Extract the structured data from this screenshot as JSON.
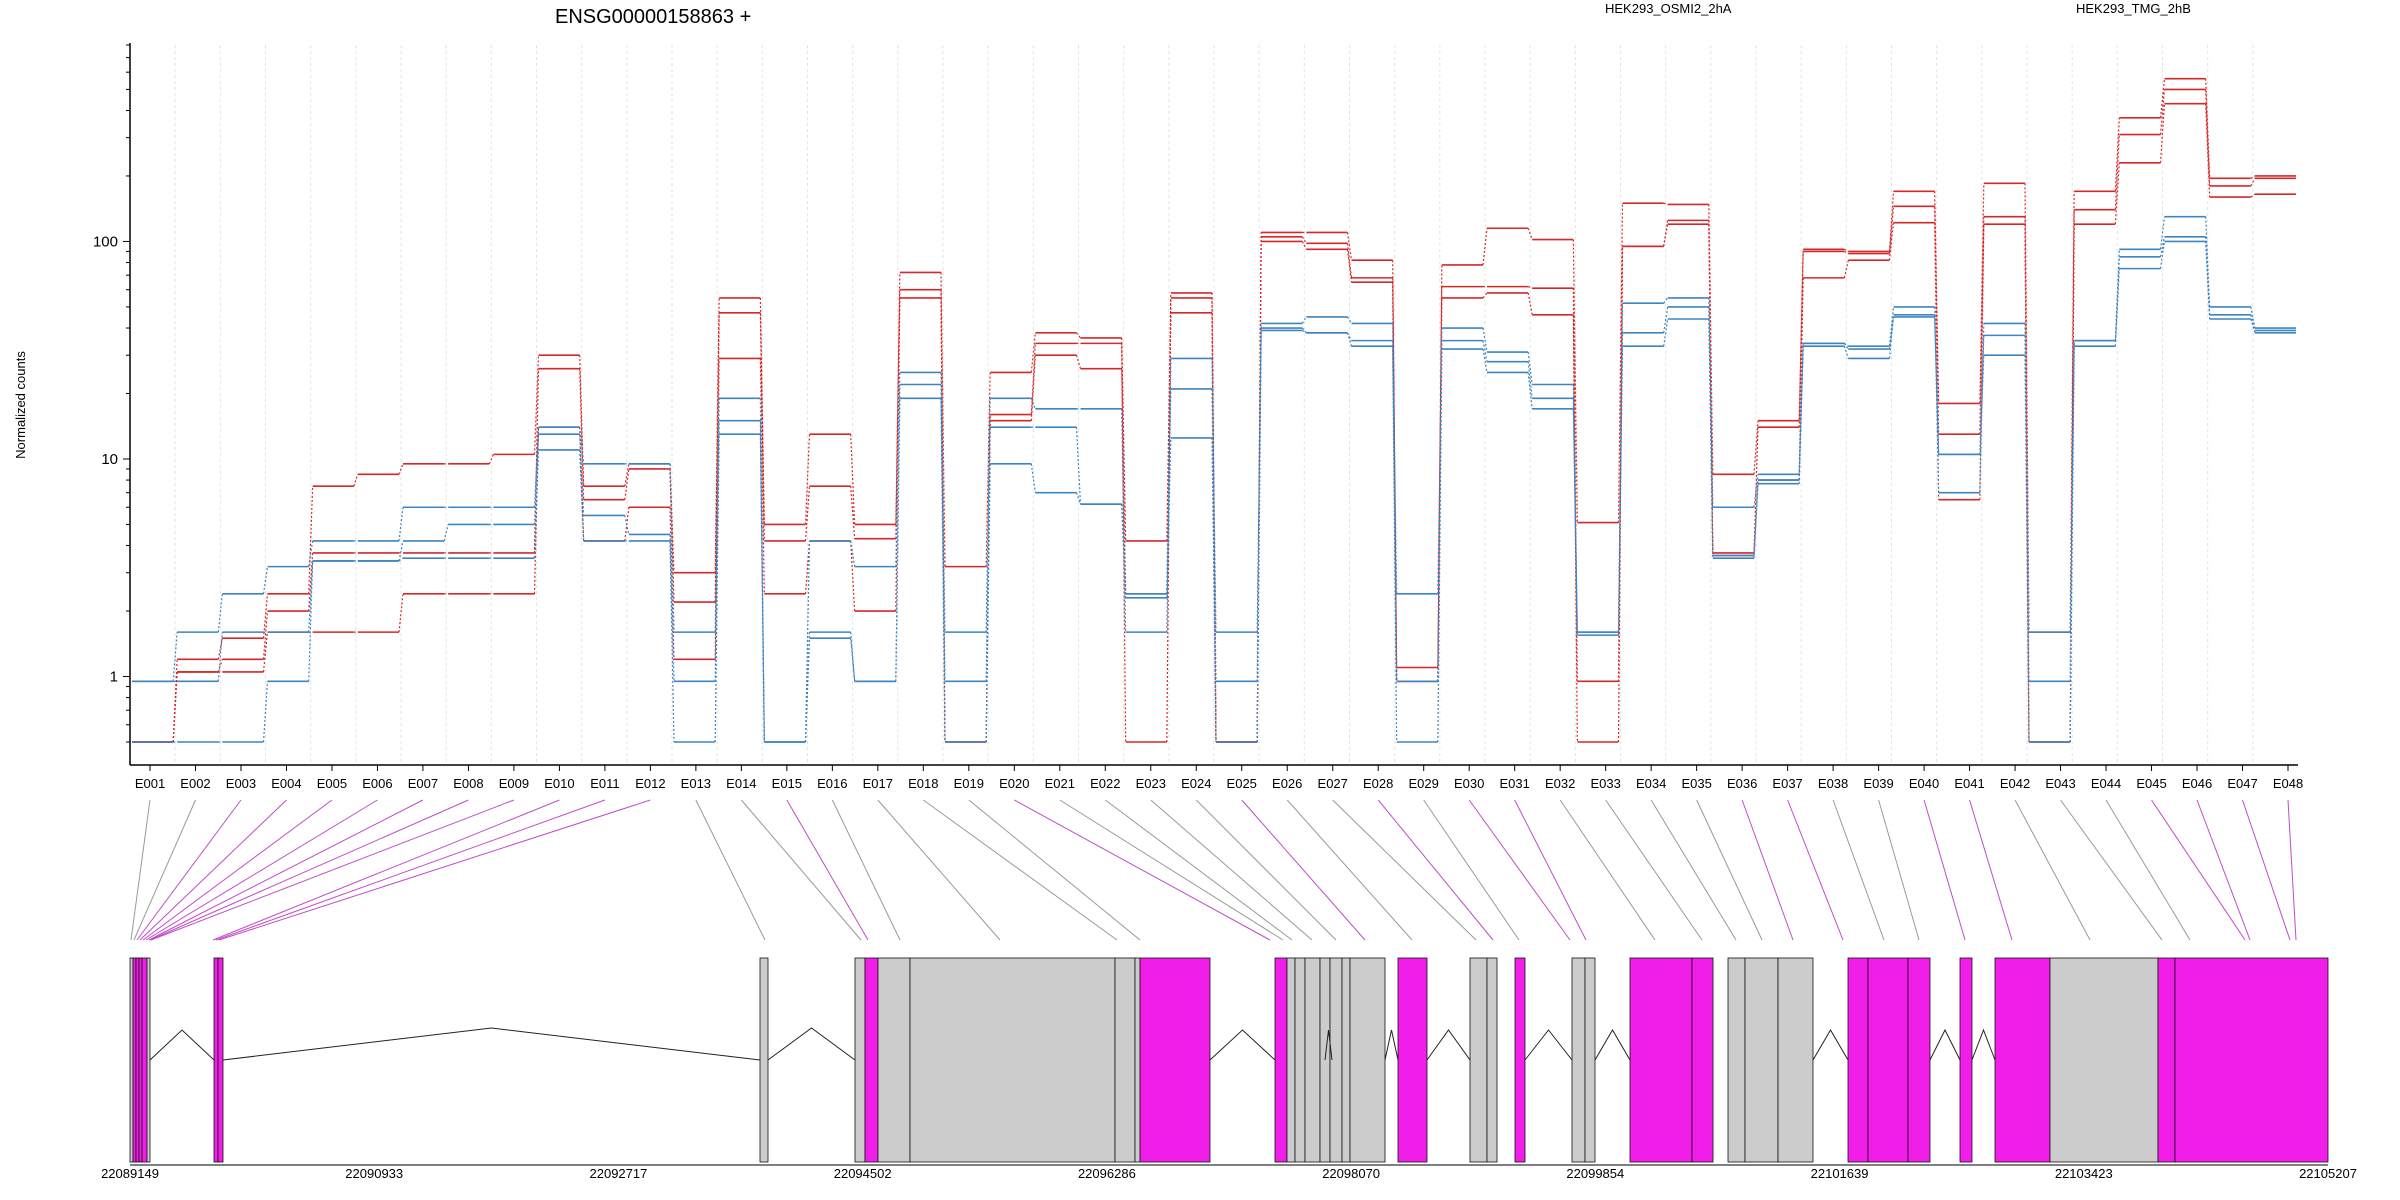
{
  "chart_data": {
    "type": "line",
    "title": "ENSG00000158863 +",
    "ylabel": "Normalized counts",
    "y_scale": "log",
    "ylim": [
      0.5,
      800
    ],
    "y_ticks": [
      1,
      10,
      100
    ],
    "y_tick_labels": [
      "1",
      "10",
      "100"
    ],
    "grid": "vertical dashed grid at exon boundaries",
    "legend": [
      {
        "name": "HEK293_OSMI2_2hA",
        "color": "#d62728",
        "position": "top-center"
      },
      {
        "name": "HEK293_TMG_2hB",
        "color": "#3c85c1",
        "position": "top-right"
      }
    ],
    "categories": [
      "E001",
      "E002",
      "E003",
      "E004",
      "E005",
      "E006",
      "E007",
      "E008",
      "E009",
      "E010",
      "E011",
      "E012",
      "E013",
      "E014",
      "E015",
      "E016",
      "E017",
      "E018",
      "E019",
      "E020",
      "E021",
      "E022",
      "E023",
      "E024",
      "E025",
      "E026",
      "E027",
      "E028",
      "E029",
      "E030",
      "E031",
      "E032",
      "E033",
      "E034",
      "E035",
      "E036",
      "E037",
      "E038",
      "E039",
      "E040",
      "E041",
      "E042",
      "E043",
      "E044",
      "E045",
      "E046",
      "E047",
      "E048"
    ],
    "series": [
      {
        "group": "HEK293_OSMI2_2hA",
        "color": "#d62728",
        "values": [
          0.5,
          1.2,
          1.5,
          2.4,
          7.5,
          8.5,
          9.5,
          9.5,
          10.5,
          30,
          7.5,
          9.5,
          3,
          55,
          5,
          13,
          5,
          72,
          3.2,
          25,
          38,
          36,
          4.2,
          58,
          0.5,
          110,
          110,
          82,
          1.1,
          78,
          115,
          102,
          5.1,
          150,
          148,
          8.5,
          15,
          92,
          90,
          170,
          18,
          185,
          1.6,
          170,
          370,
          560,
          195,
          200
        ]
      },
      {
        "group": "HEK293_OSMI2_2hA",
        "color": "#d62728",
        "values": [
          0.5,
          1.05,
          1.2,
          2,
          3.7,
          3.7,
          3.7,
          3.7,
          3.7,
          26,
          6.5,
          9,
          2.2,
          47,
          4.2,
          7.5,
          4.3,
          60,
          0.5,
          16,
          34,
          34,
          0.5,
          55,
          0.5,
          105,
          98,
          68,
          0.95,
          62,
          62,
          61,
          0.95,
          95,
          125,
          3.7,
          14,
          90,
          88,
          145,
          13,
          130,
          0.5,
          140,
          310,
          500,
          180,
          195
        ]
      },
      {
        "group": "HEK293_OSMI2_2hA",
        "color": "#d62728",
        "values": [
          0.5,
          1.05,
          1.05,
          1.6,
          1.6,
          1.6,
          2.4,
          2.4,
          2.4,
          14,
          4.2,
          6,
          1.2,
          29,
          2.4,
          4.2,
          2,
          55,
          0.5,
          15,
          30,
          26,
          2.4,
          47,
          0.5,
          100,
          92,
          65,
          0.95,
          55,
          58,
          46,
          0.5,
          95,
          120,
          3.6,
          8,
          68,
          82,
          122,
          6.5,
          120,
          0.5,
          120,
          230,
          430,
          160,
          165
        ]
      },
      {
        "group": "HEK293_TMG_2hB",
        "color": "#3c85c1",
        "values": [
          0.95,
          1.6,
          2.4,
          3.2,
          4.2,
          4.2,
          6,
          6,
          6,
          14,
          9.5,
          9.5,
          1.6,
          19,
          0.5,
          4.2,
          3.2,
          25,
          1.6,
          19,
          17,
          17,
          1.6,
          29,
          1.6,
          42,
          45,
          42,
          2.4,
          40,
          31,
          22,
          1.6,
          52,
          55,
          6,
          8.5,
          34,
          33,
          50,
          7,
          42,
          1.6,
          35,
          92,
          130,
          50,
          40
        ]
      },
      {
        "group": "HEK293_TMG_2hB",
        "color": "#3c85c1",
        "values": [
          0.95,
          0.95,
          1.6,
          1.6,
          3.4,
          3.4,
          4.2,
          5,
          5,
          13,
          5.5,
          4.5,
          0.95,
          15,
          0.5,
          1.6,
          0.95,
          22,
          0.95,
          14,
          14,
          6.2,
          2.4,
          21,
          0.95,
          40,
          38,
          35,
          0.95,
          35,
          28,
          19,
          1.6,
          38,
          50,
          3.6,
          8,
          34,
          32,
          45,
          10.5,
          37,
          0.95,
          35,
          85,
          105,
          46,
          39
        ]
      },
      {
        "group": "HEK293_TMG_2hB",
        "color": "#3c85c1",
        "values": [
          0.5,
          0.5,
          0.5,
          0.95,
          3.4,
          3.4,
          3.5,
          3.5,
          3.5,
          11,
          4.2,
          4.2,
          0.5,
          13,
          0.5,
          1.5,
          0.95,
          19,
          0.5,
          9.5,
          7,
          6.2,
          2.3,
          12.5,
          0.5,
          39,
          38,
          33,
          0.5,
          32,
          25,
          17,
          1.55,
          33,
          44,
          3.5,
          7.7,
          33,
          29,
          46,
          10.5,
          30,
          0.5,
          33,
          75,
          100,
          44,
          38
        ]
      }
    ],
    "gene_model": {
      "coordinate_labels": [
        "22089149",
        "22090933",
        "22092717",
        "22094502",
        "22096286",
        "22098070",
        "22099854",
        "22101639",
        "22103423",
        "22105207"
      ],
      "exon_highlight": [
        "E001",
        "E003",
        "E004",
        "E005",
        "E006",
        "E007",
        "E008",
        "E009",
        "E010",
        "E011",
        "E012",
        "E015",
        "E020",
        "E025",
        "E028",
        "E030",
        "E031",
        "E036",
        "E037",
        "E040",
        "E041",
        "E042",
        "E045",
        "E046",
        "E047",
        "E048"
      ],
      "colors": {
        "highlight": "#f01ee8",
        "exon": "#cccccc"
      }
    }
  }
}
